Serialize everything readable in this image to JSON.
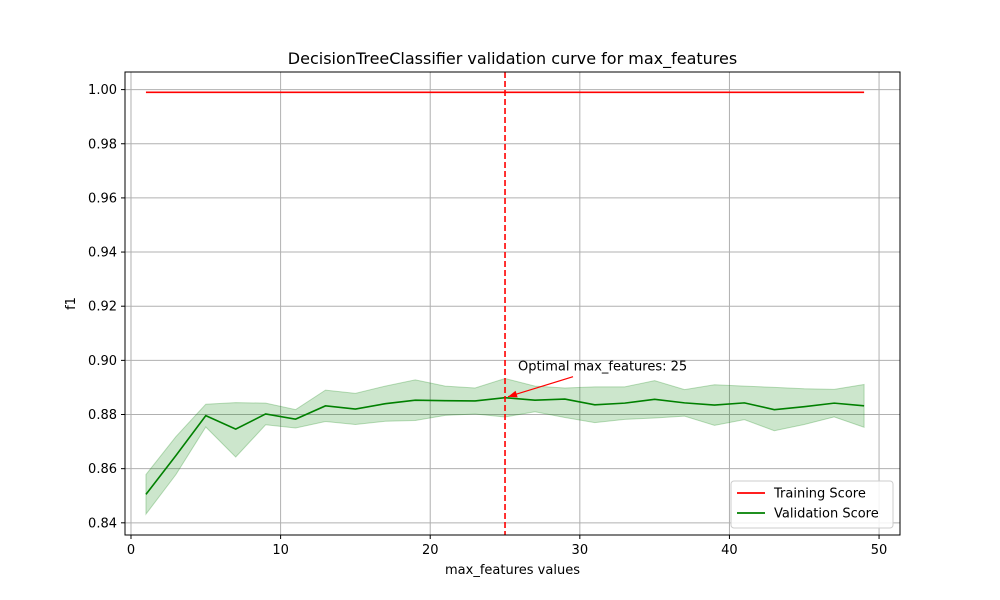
{
  "chart_data": {
    "type": "line",
    "title": "DecisionTreeClassifier validation curve for max_features",
    "xlabel": "max_features values",
    "ylabel": "f1",
    "xlim": [
      -0.4,
      51.4
    ],
    "ylim": [
      0.8355,
      1.0065
    ],
    "xticks": [
      0,
      10,
      20,
      30,
      40,
      50
    ],
    "xtick_labels": [
      "0",
      "10",
      "20",
      "30",
      "40",
      "50"
    ],
    "yticks": [
      0.84,
      0.86,
      0.88,
      0.9,
      0.92,
      0.94,
      0.96,
      0.98,
      1.0
    ],
    "ytick_labels": [
      "0.84",
      "0.86",
      "0.88",
      "0.90",
      "0.92",
      "0.94",
      "0.96",
      "0.98",
      "1.00"
    ],
    "grid": true,
    "legend_position": "bottom-right",
    "x": [
      1,
      3,
      5,
      7,
      9,
      11,
      13,
      15,
      17,
      19,
      21,
      23,
      25,
      27,
      29,
      31,
      33,
      35,
      37,
      39,
      41,
      43,
      45,
      47,
      49
    ],
    "series": [
      {
        "name": "Training Score",
        "color": "#ff0000",
        "values": [
          0.999,
          0.999,
          0.999,
          0.999,
          0.999,
          0.999,
          0.999,
          0.999,
          0.999,
          0.999,
          0.999,
          0.999,
          0.999,
          0.999,
          0.999,
          0.999,
          0.999,
          0.999,
          0.999,
          0.999,
          0.999,
          0.999,
          0.999,
          0.999,
          0.999
        ]
      },
      {
        "name": "Validation Score",
        "color": "#008000",
        "band_color": "#008000",
        "values": [
          0.8505,
          0.8648,
          0.8796,
          0.8746,
          0.8802,
          0.8783,
          0.8832,
          0.882,
          0.884,
          0.8853,
          0.8851,
          0.885,
          0.8862,
          0.8853,
          0.8857,
          0.8836,
          0.8842,
          0.8856,
          0.8843,
          0.8835,
          0.8843,
          0.8818,
          0.8829,
          0.8842,
          0.8832
        ],
        "upper": [
          0.8578,
          0.8718,
          0.8838,
          0.8844,
          0.8842,
          0.8818,
          0.889,
          0.8878,
          0.8905,
          0.8928,
          0.8905,
          0.8898,
          0.8933,
          0.8905,
          0.8898,
          0.8902,
          0.8902,
          0.8925,
          0.8892,
          0.891,
          0.8905,
          0.89,
          0.8895,
          0.8893,
          0.8911
        ],
        "lower": [
          0.8432,
          0.8578,
          0.8754,
          0.8643,
          0.8762,
          0.875,
          0.8774,
          0.8763,
          0.8775,
          0.8778,
          0.8797,
          0.8802,
          0.8791,
          0.881,
          0.8789,
          0.877,
          0.8782,
          0.8787,
          0.8794,
          0.876,
          0.8781,
          0.874,
          0.8763,
          0.8791,
          0.8753
        ]
      }
    ],
    "optimal": {
      "x": 25,
      "color": "#ff0000",
      "annotation": "Optimal max_features: 25"
    }
  }
}
